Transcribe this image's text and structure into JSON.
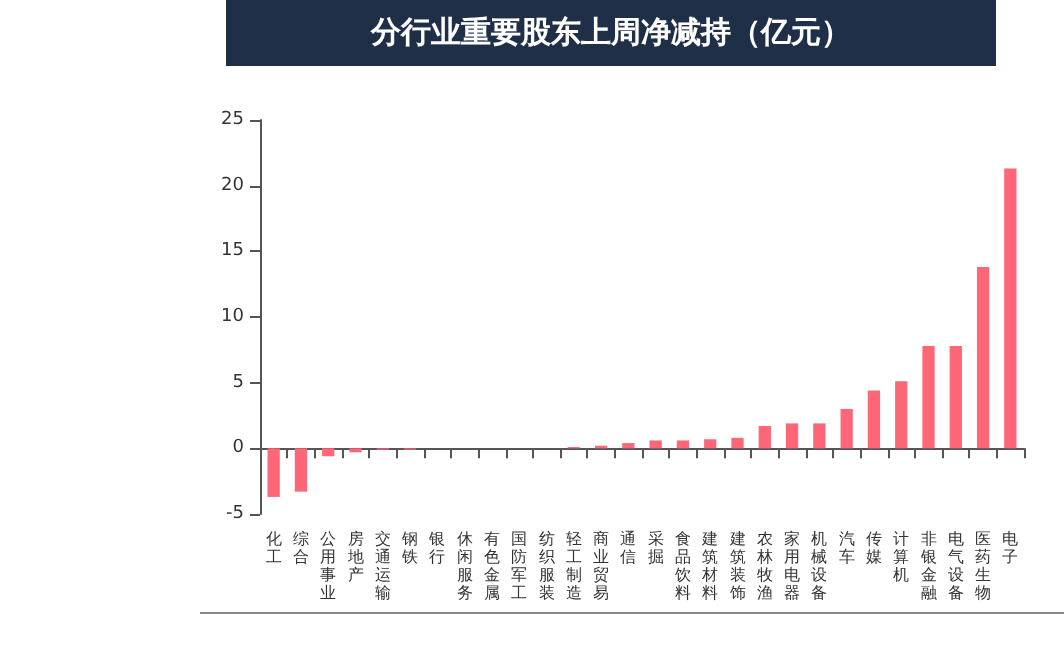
{
  "chart_data": {
    "type": "bar",
    "title": "分行业重要股东上周净减持（亿元）",
    "categories": [
      "化工",
      "综合",
      "公用事业",
      "房地产",
      "交通运输",
      "钢铁",
      "银行",
      "休闲服务",
      "有色金属",
      "国防军工",
      "纺织服装",
      "轻工制造",
      "商业贸易",
      "通信",
      "采掘",
      "食品饮料",
      "建筑材料",
      "建筑装饰",
      "农林牧渔",
      "家用电器",
      "机械设备",
      "汽车",
      "传媒",
      "计算机",
      "非银金融",
      "电气设备",
      "医药生物",
      "电子"
    ],
    "values": [
      -3.7,
      -3.3,
      -0.6,
      -0.3,
      -0.1,
      -0.1,
      0,
      0,
      0,
      0,
      0,
      0.1,
      0.2,
      0.4,
      0.6,
      0.6,
      0.7,
      0.8,
      1.7,
      1.9,
      1.9,
      3.0,
      4.4,
      5.1,
      7.8,
      7.8,
      13.8,
      21.3
    ],
    "color": "#ff6677",
    "ylim": [
      -5,
      25
    ],
    "yticks": [
      -5,
      0,
      5,
      10,
      15,
      20,
      25
    ]
  }
}
